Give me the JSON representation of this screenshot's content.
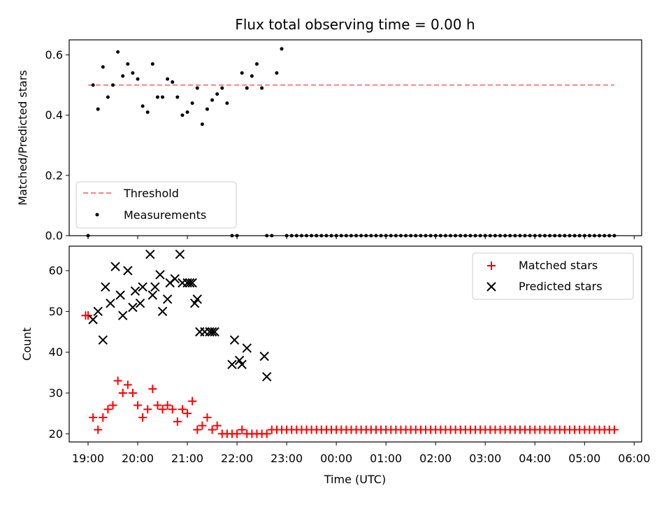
{
  "chart_data": [
    {
      "type": "scatter",
      "title": "Flux total observing time = 0.00 h",
      "xlabel": "",
      "ylabel": "Matched/Predicted stars",
      "xlim": [
        18.62,
        30.15
      ],
      "ylim": [
        0,
        0.65
      ],
      "yticks": [
        "0.0",
        "0.2",
        "0.4",
        "0.6"
      ],
      "legend_position": "lower-left",
      "threshold": {
        "name": "Threshold",
        "y": 0.5,
        "x_range": [
          19.0,
          29.6
        ],
        "color": "#ff7f7f",
        "style": "dashed"
      },
      "series": [
        {
          "name": "Measurements",
          "color": "#000000",
          "x": [
            19.0,
            19.1,
            19.2,
            19.3,
            19.4,
            19.5,
            19.6,
            19.7,
            19.8,
            19.9,
            20.0,
            20.1,
            20.2,
            20.3,
            20.4,
            20.5,
            20.6,
            20.7,
            20.8,
            20.9,
            21.0,
            21.1,
            21.2,
            21.3,
            21.4,
            21.5,
            21.6,
            21.7,
            21.8,
            21.9,
            22.0,
            22.1,
            22.2,
            22.3,
            22.4,
            22.5,
            22.6,
            22.7,
            22.8,
            22.9,
            23.0,
            23.1,
            23.2,
            23.3,
            23.4,
            23.5,
            23.6,
            23.7,
            23.8,
            23.9,
            24.0,
            24.1,
            24.2,
            24.3,
            24.4,
            24.5,
            24.6,
            24.7,
            24.8,
            24.9,
            25.0,
            25.1,
            25.2,
            25.3,
            25.4,
            25.5,
            25.6,
            25.7,
            25.8,
            25.9,
            26.0,
            26.1,
            26.2,
            26.3,
            26.4,
            26.5,
            26.6,
            26.7,
            26.8,
            26.9,
            27.0,
            27.1,
            27.2,
            27.3,
            27.4,
            27.5,
            27.6,
            27.7,
            27.8,
            27.9,
            28.0,
            28.1,
            28.2,
            28.3,
            28.4,
            28.5,
            28.6,
            28.7,
            28.8,
            28.9,
            29.0,
            29.1,
            29.2,
            29.3,
            29.4,
            29.5,
            29.6
          ],
          "y": [
            0.0,
            0.5,
            0.42,
            0.56,
            0.46,
            0.5,
            0.61,
            0.53,
            0.57,
            0.54,
            0.52,
            0.43,
            0.41,
            0.57,
            0.46,
            0.46,
            0.52,
            0.51,
            0.46,
            0.4,
            0.41,
            0.44,
            0.49,
            0.37,
            0.42,
            0.45,
            0.47,
            0.49,
            0.44,
            0.0,
            0.0,
            0.54,
            0.49,
            0.53,
            0.57,
            0.49,
            0.0,
            0.0,
            0.54,
            0.62,
            0.0,
            0.0,
            0.0,
            0.0,
            0.0,
            0.0,
            0.0,
            0.0,
            0.0,
            0.0,
            0.0,
            0.0,
            0.0,
            0.0,
            0.0,
            0.0,
            0.0,
            0.0,
            0.0,
            0.0,
            0.0,
            0.0,
            0.0,
            0.0,
            0.0,
            0.0,
            0.0,
            0.0,
            0.0,
            0.0,
            0.0,
            0.0,
            0.0,
            0.0,
            0.0,
            0.0,
            0.0,
            0.0,
            0.0,
            0.0,
            0.0,
            0.0,
            0.0,
            0.0,
            0.0,
            0.0,
            0.0,
            0.0,
            0.0,
            0.0,
            0.0,
            0.0,
            0.0,
            0.0,
            0.0,
            0.0,
            0.0,
            0.0,
            0.0,
            0.0,
            0.0,
            0.0,
            0.0,
            0.0,
            0.0,
            0.0,
            0.0
          ]
        }
      ]
    },
    {
      "type": "scatter",
      "title": "",
      "xlabel": "Time (UTC)",
      "ylabel": "Count",
      "xlim": [
        18.62,
        30.15
      ],
      "ylim": [
        18,
        66
      ],
      "xticks": [
        "19:00",
        "20:00",
        "21:00",
        "22:00",
        "23:00",
        "00:00",
        "01:00",
        "02:00",
        "03:00",
        "04:00",
        "05:00",
        "06:00"
      ],
      "xtick_values": [
        19,
        20,
        21,
        22,
        23,
        24,
        25,
        26,
        27,
        28,
        29,
        30
      ],
      "yticks": [
        "20",
        "30",
        "40",
        "50",
        "60"
      ],
      "legend_position": "upper-right",
      "series": [
        {
          "name": "Matched stars",
          "marker": "plus",
          "color": "#ff0000",
          "x": [
            18.95,
            19.0,
            19.1,
            19.2,
            19.3,
            19.4,
            19.5,
            19.6,
            19.7,
            19.8,
            19.9,
            20.0,
            20.1,
            20.2,
            20.3,
            20.4,
            20.5,
            20.6,
            20.7,
            20.8,
            20.9,
            21.0,
            21.1,
            21.2,
            21.3,
            21.4,
            21.5,
            21.6,
            21.7,
            21.8,
            21.9,
            22.0,
            22.1,
            22.2,
            22.3,
            22.4,
            22.5,
            22.6,
            22.7,
            22.8,
            22.9,
            23.0,
            23.1,
            23.2,
            23.3,
            23.4,
            23.5,
            23.6,
            23.7,
            23.8,
            23.9,
            24.0,
            24.1,
            24.2,
            24.3,
            24.4,
            24.5,
            24.6,
            24.7,
            24.8,
            24.9,
            25.0,
            25.1,
            25.2,
            25.3,
            25.4,
            25.5,
            25.6,
            25.7,
            25.8,
            25.9,
            26.0,
            26.1,
            26.2,
            26.3,
            26.4,
            26.5,
            26.6,
            26.7,
            26.8,
            26.9,
            27.0,
            27.1,
            27.2,
            27.3,
            27.4,
            27.5,
            27.6,
            27.7,
            27.8,
            27.9,
            28.0,
            28.1,
            28.2,
            28.3,
            28.4,
            28.5,
            28.6,
            28.7,
            28.8,
            28.9,
            29.0,
            29.1,
            29.2,
            29.3,
            29.4,
            29.5,
            29.6
          ],
          "y": [
            49,
            49,
            24,
            21,
            24,
            26,
            27,
            33,
            30,
            32,
            30,
            27,
            24,
            26,
            31,
            27,
            26,
            27,
            26,
            23,
            26,
            25,
            28,
            21,
            22,
            24,
            21,
            22,
            20,
            20,
            20,
            20,
            21,
            20,
            20,
            20,
            20,
            20,
            21,
            21,
            21,
            21,
            21,
            21,
            21,
            21,
            21,
            21,
            21,
            21,
            21,
            21,
            21,
            21,
            21,
            21,
            21,
            21,
            21,
            21,
            21,
            21,
            21,
            21,
            21,
            21,
            21,
            21,
            21,
            21,
            21,
            21,
            21,
            21,
            21,
            21,
            21,
            21,
            21,
            21,
            21,
            21,
            21,
            21,
            21,
            21,
            21,
            21,
            21,
            21,
            21,
            21,
            21,
            21,
            21,
            21,
            21,
            21,
            21,
            21,
            21,
            21,
            21,
            21,
            21,
            21,
            21,
            21
          ]
        },
        {
          "name": "Predicted stars",
          "marker": "x",
          "color": "#000000",
          "x": [
            19.1,
            19.2,
            19.3,
            19.35,
            19.45,
            19.55,
            19.65,
            19.7,
            19.8,
            19.9,
            19.95,
            20.05,
            20.1,
            20.25,
            20.3,
            20.35,
            20.45,
            20.5,
            20.6,
            20.65,
            20.75,
            20.85,
            20.9,
            21.0,
            21.05,
            21.1,
            21.15,
            21.2,
            21.25,
            21.35,
            21.45,
            21.5,
            21.55,
            21.9,
            21.95,
            22.05,
            22.1,
            22.2,
            22.55,
            22.6
          ],
          "y": [
            48,
            50,
            43,
            56,
            52,
            61,
            54,
            49,
            60,
            51,
            55,
            52,
            56,
            64,
            54,
            56,
            59,
            50,
            53,
            57,
            58,
            64,
            57,
            57,
            57,
            57,
            52,
            53,
            45,
            45,
            45,
            45,
            45,
            37,
            43,
            38,
            37,
            41,
            39,
            34
          ]
        }
      ]
    }
  ]
}
